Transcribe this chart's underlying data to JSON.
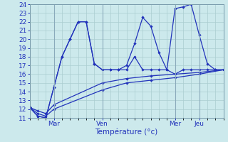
{
  "xlabel": "Température (°c)",
  "xlim": [
    0,
    24
  ],
  "ylim": [
    11,
    24
  ],
  "yticks": [
    11,
    12,
    13,
    14,
    15,
    16,
    17,
    18,
    19,
    20,
    21,
    22,
    23,
    24
  ],
  "xtick_positions": [
    3,
    9,
    18,
    21
  ],
  "xtick_labels": [
    "Mar",
    "Ven",
    "Mer",
    "Jeu"
  ],
  "bg_color": "#cce9ec",
  "grid_color": "#aacdd0",
  "line_color": "#2233bb",
  "s1_x": [
    0,
    1,
    2,
    3,
    4,
    5,
    6,
    7,
    8,
    9,
    10,
    11,
    12,
    13,
    14,
    15,
    16,
    17,
    18,
    19,
    20,
    21,
    22,
    23,
    24
  ],
  "s1_y": [
    12.2,
    11.2,
    11.0,
    14.5,
    18.0,
    20.0,
    22.0,
    22.0,
    17.2,
    16.5,
    16.5,
    16.5,
    16.5,
    18.0,
    16.5,
    16.5,
    16.5,
    16.5,
    23.5,
    23.7,
    24.0,
    20.5,
    17.2,
    16.5,
    16.5
  ],
  "s2_x": [
    0,
    1,
    2,
    3,
    4,
    5,
    6,
    7,
    8,
    9,
    10,
    11,
    12,
    13,
    14,
    15,
    16,
    17,
    18,
    19,
    20,
    21,
    22,
    23,
    24
  ],
  "s2_y": [
    12.2,
    11.2,
    11.0,
    14.5,
    18.0,
    20.0,
    22.0,
    22.0,
    17.2,
    16.5,
    16.5,
    16.5,
    17.0,
    19.5,
    22.5,
    21.5,
    18.5,
    16.5,
    16.0,
    16.5,
    16.5,
    16.5,
    16.5,
    16.5,
    16.5
  ],
  "s3_x": [
    0,
    1,
    2,
    3,
    9,
    12,
    15,
    18,
    21,
    24
  ],
  "s3_y": [
    12.2,
    11.8,
    11.5,
    12.5,
    15.0,
    15.5,
    15.8,
    16.0,
    16.2,
    16.5
  ],
  "s4_x": [
    0,
    1,
    2,
    3,
    9,
    12,
    15,
    18,
    21,
    24
  ],
  "s4_y": [
    12.2,
    11.5,
    11.2,
    12.0,
    14.2,
    15.0,
    15.3,
    15.6,
    16.0,
    16.5
  ]
}
